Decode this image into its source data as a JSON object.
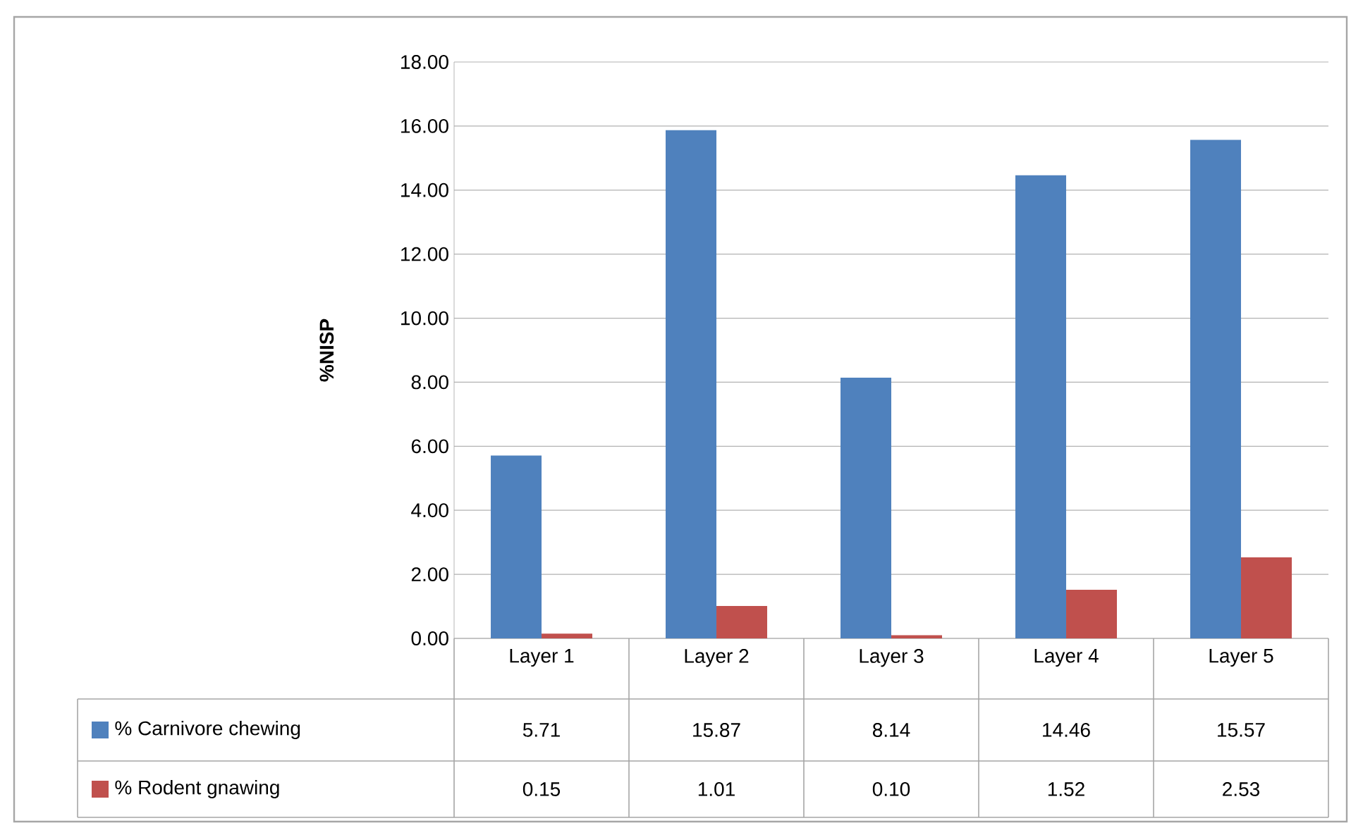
{
  "chart_data": {
    "type": "bar",
    "ylabel": "%NISP",
    "categories": [
      "Layer 1",
      "Layer 2",
      "Layer 3",
      "Layer 4",
      "Layer 5"
    ],
    "series": [
      {
        "name": "% Carnivore chewing",
        "color": "#4f81bd",
        "values": [
          5.71,
          15.87,
          8.14,
          14.46,
          15.57
        ],
        "value_labels": [
          "5.71",
          "15.87",
          "8.14",
          "14.46",
          "15.57"
        ]
      },
      {
        "name": "% Rodent gnawing",
        "color": "#c0504d",
        "values": [
          0.15,
          1.01,
          0.1,
          1.52,
          2.53
        ],
        "value_labels": [
          "0.15",
          "1.01",
          "0.10",
          "1.52",
          "2.53"
        ]
      }
    ],
    "ylim": [
      0,
      18
    ],
    "yticks": [
      {
        "value": 0,
        "label": "0.00"
      },
      {
        "value": 2,
        "label": "2.00"
      },
      {
        "value": 4,
        "label": "4.00"
      },
      {
        "value": 6,
        "label": "6.00"
      },
      {
        "value": 8,
        "label": "8.00"
      },
      {
        "value": 10,
        "label": "10.00"
      },
      {
        "value": 12,
        "label": "12.00"
      },
      {
        "value": 14,
        "label": "14.00"
      },
      {
        "value": 16,
        "label": "16.00"
      },
      {
        "value": 18,
        "label": "18.00"
      }
    ],
    "grid": "y",
    "legend": "bottom"
  }
}
